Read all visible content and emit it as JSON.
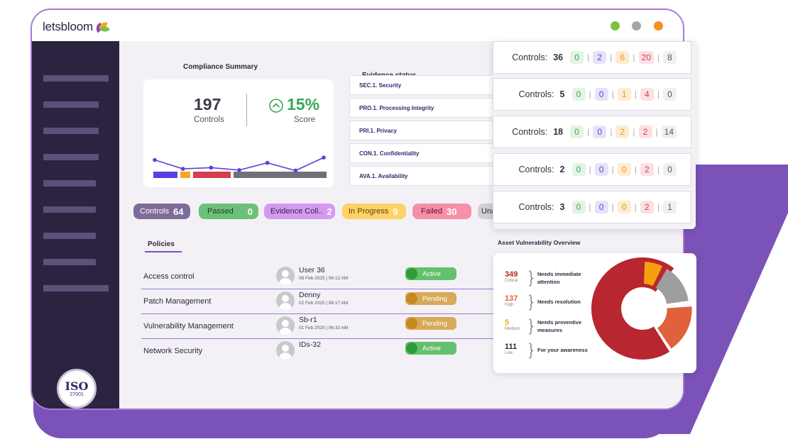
{
  "app": {
    "brand": "letsbloom"
  },
  "window_dots": {
    "green": "#7dc142",
    "gray": "#a6a6a6",
    "orange": "#f58f1f"
  },
  "badge": {
    "top": "ISO",
    "number": "27001"
  },
  "compliance_summary": {
    "title": "Compliance Summary",
    "controls_value": "197",
    "controls_label": "Controls",
    "score_value": "15%",
    "score_label": "Score",
    "trend": [
      0.72,
      0.35,
      0.4,
      0.3,
      0.6,
      0.28,
      0.82
    ]
  },
  "evidence_status": {
    "title": "Evidence status",
    "items": [
      "SEC.1. Security",
      "PRO.1. Processing Integrity",
      "PRI.1. Privacy",
      "CON.1. Confidentiality",
      "AVA.1. Availability"
    ]
  },
  "status_pills": [
    {
      "label": "Controls",
      "count": "64",
      "bg": "#7e6b97",
      "fg": "#ffffff"
    },
    {
      "label": "Passed",
      "count": "0",
      "bg": "#6cc17a",
      "fg": "#1f3a22"
    },
    {
      "label": "Evidence Coll..",
      "count": "2",
      "bg": "#d39af0",
      "fg": "#3a2444"
    },
    {
      "label": "In Progress",
      "count": "9",
      "bg": "#ffd166",
      "fg": "#5a4300"
    },
    {
      "label": "Failed",
      "count": "30",
      "bg": "#f78fa7",
      "fg": "#5a1626"
    },
    {
      "label": "Una",
      "count": "",
      "bg": "#cfcfd4",
      "fg": "#333333"
    }
  ],
  "controls_panel": {
    "label": "Controls:",
    "rows": [
      {
        "total": "36",
        "green": "0",
        "blue": "2",
        "orange": "6",
        "red": "20",
        "gray": "8"
      },
      {
        "total": "5",
        "green": "0",
        "blue": "0",
        "orange": "1",
        "red": "4",
        "gray": "0"
      },
      {
        "total": "18",
        "green": "0",
        "blue": "0",
        "orange": "2",
        "red": "2",
        "gray": "14"
      },
      {
        "total": "2",
        "green": "0",
        "blue": "0",
        "orange": "0",
        "red": "2",
        "gray": "0"
      },
      {
        "total": "3",
        "green": "0",
        "blue": "0",
        "orange": "0",
        "red": "2",
        "gray": "1"
      }
    ]
  },
  "policies": {
    "tab_label": "Policies",
    "rows": [
      {
        "name": "Access control",
        "owner": "User 36",
        "date": "08 Feb 2025 | 06:12 AM",
        "status": "Active",
        "status_color": "#63c06d",
        "knob_color": "#2f9c3a"
      },
      {
        "name": "Patch Management",
        "owner": "Denny",
        "date": "02 Feb 2025 | 08:17 AM",
        "status": "Pending",
        "status_color": "#d8a95a",
        "knob_color": "#c58a1e"
      },
      {
        "name": "Vulnerability Management",
        "owner": "Sb-r1",
        "date": "01 Feb 2025 | 06:32 AM",
        "status": "Pending",
        "status_color": "#d8a95a",
        "knob_color": "#c58a1e"
      },
      {
        "name": "Network Security",
        "owner": "IDs-32",
        "date": "",
        "status": "Active",
        "status_color": "#63c06d",
        "knob_color": "#2f9c3a"
      }
    ]
  },
  "vulnerability": {
    "title": "Asset Vulnerability Overview",
    "levels": [
      {
        "count": "349",
        "severity": "Critical",
        "desc": "Needs immediate attention",
        "color": "#b8262f"
      },
      {
        "count": "137",
        "severity": "High",
        "desc": "Needs resolution",
        "color": "#e0613a"
      },
      {
        "count": "5",
        "severity": "Medium",
        "desc": "Needs preventive measures",
        "color": "#f5a10f"
      },
      {
        "count": "111",
        "severity": "Low",
        "desc": "For your awareness",
        "color": "#9e9e9e"
      }
    ]
  }
}
